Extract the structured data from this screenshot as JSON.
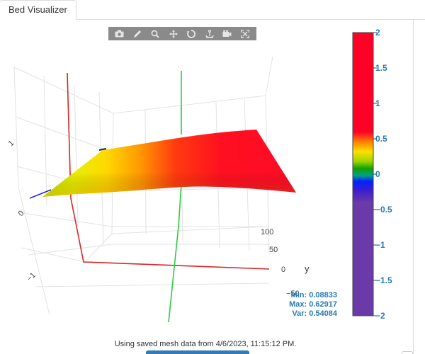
{
  "tab": {
    "label": "Bed Visualizer"
  },
  "modebar": {
    "buttons": [
      "camera-icon",
      "pencil-icon",
      "zoom-icon",
      "pan-icon",
      "orbit-icon",
      "turntable-icon",
      "reset-camera-icon",
      "autoscale-icon"
    ]
  },
  "scene": {
    "z_ticks": [
      "1",
      "0",
      "−1"
    ],
    "y_ticks": [
      "100",
      "50",
      "0",
      "−50"
    ],
    "y_axis_title": "y",
    "axis_colors": {
      "x": "#d62728",
      "y": "#2ecc40",
      "z": "#2a2ad8"
    }
  },
  "colorbar": {
    "ticks": [
      "2",
      "1.5",
      "1",
      "0.5",
      "0",
      "−0.5",
      "−1",
      "−1.5",
      "−2"
    ],
    "range": [
      -2,
      2
    ],
    "tick_color": "#2a7ab3"
  },
  "stats": {
    "min": "Min: 0.08833",
    "max": "Max: 0.62917",
    "var": "Var: 0.54084"
  },
  "footer": {
    "note": "Using saved mesh data from 4/6/2023, 11:15:12 PM."
  }
}
